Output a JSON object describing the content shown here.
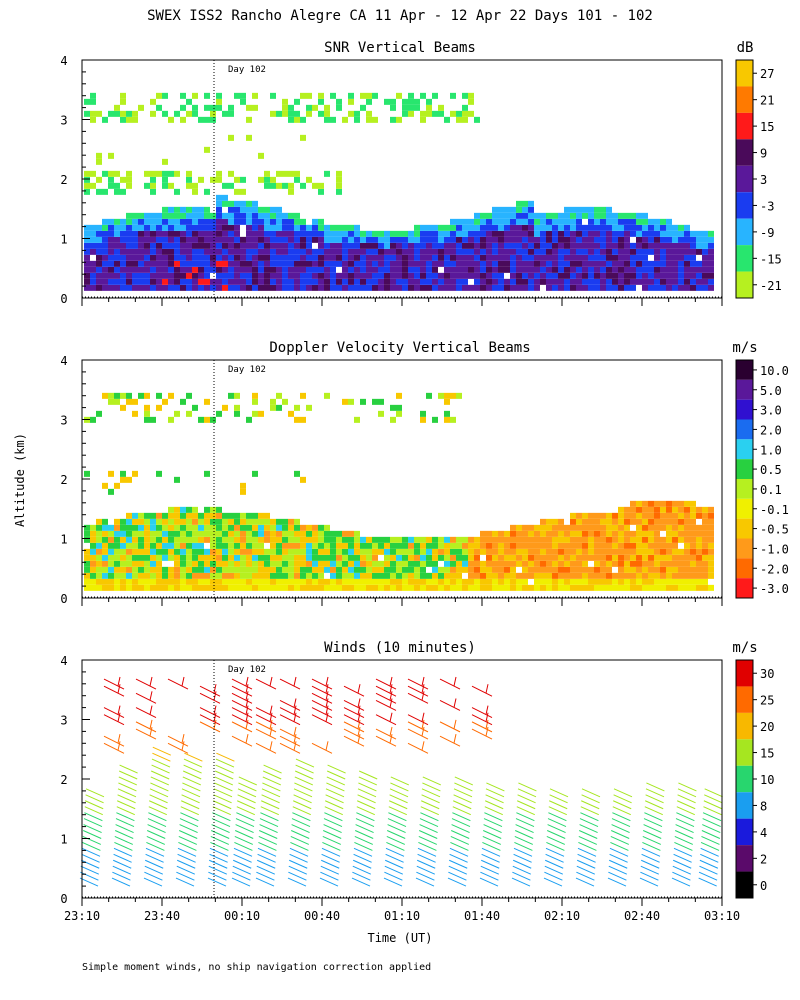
{
  "figure": {
    "title": "SWEX ISS2 Rancho Alegre CA  11 Apr - 12 Apr 22 Days 101 - 102",
    "footnote": "Simple moment winds, no ship navigation correction applied",
    "ylabel": "Altitude (km)",
    "xlabel": "Time (UT)",
    "day_marker_label": "Day 102"
  },
  "chart_data": [
    {
      "type": "heatmap",
      "title": "SNR Vertical Beams",
      "ylabel": "Altitude (km)",
      "ylim": [
        0,
        4
      ],
      "yticks": [
        "0",
        "1",
        "2",
        "3",
        "4"
      ],
      "xlim_minutes": [
        0,
        240
      ],
      "colorbar": {
        "unit": "dB",
        "labels": [
          "27",
          "21",
          "15",
          "9",
          "3",
          "-3",
          "-9",
          "-15",
          "-21"
        ],
        "colors": [
          "#f8c800",
          "#ff7a00",
          "#ff1a1a",
          "#4a0a5a",
          "#5a189a",
          "#1a3cf0",
          "#28b4ff",
          "#28e66e",
          "#b6f020"
        ]
      },
      "day_marker_minutes": 57,
      "cloud_layers": [
        {
          "altitude_range_km": [
            0.1,
            1.4
          ],
          "dominant_dB": 6,
          "time_range": [
            "23:10",
            "03:05"
          ]
        },
        {
          "altitude_range_km": [
            1.7,
            2.1
          ],
          "dominant_dB": -18,
          "time_range": [
            "23:10",
            "00:40"
          ]
        },
        {
          "altitude_range_km": [
            2.9,
            3.4
          ],
          "dominant_dB": -15,
          "time_range": [
            "23:10",
            "01:35"
          ]
        }
      ]
    },
    {
      "type": "heatmap",
      "title": "Doppler Velocity Vertical Beams",
      "ylabel": "Altitude (km)",
      "ylim": [
        0,
        4
      ],
      "yticks": [
        "0",
        "1",
        "2",
        "3",
        "4"
      ],
      "xlim_minutes": [
        0,
        240
      ],
      "colorbar": {
        "unit": "m/s",
        "labels": [
          "10.0",
          "5.0",
          "3.0",
          "2.0",
          "1.0",
          "0.5",
          "0.1",
          "-0.1",
          "-0.5",
          "-1.0",
          "-2.0",
          "-3.0"
        ],
        "colors": [
          "#2a0030",
          "#5a189a",
          "#3010d0",
          "#1a6cf0",
          "#2ad0f0",
          "#28d040",
          "#b6f020",
          "#f0f000",
          "#f8c800",
          "#ff9a1a",
          "#ff6a00",
          "#ff1a1a"
        ]
      },
      "day_marker_minutes": 57
    },
    {
      "type": "wind_barbs",
      "title": "Winds (10 minutes)",
      "xlabel": "Time (UT)",
      "ylabel": "Altitude (km)",
      "ylim": [
        0,
        4
      ],
      "yticks": [
        "0",
        "1",
        "2",
        "3",
        "4"
      ],
      "xticks": [
        "23:10",
        "23:40",
        "00:10",
        "00:40",
        "01:10",
        "01:40",
        "02:10",
        "02:40",
        "03:10"
      ],
      "colorbar": {
        "unit": "m/s",
        "labels": [
          "30",
          "25",
          "20",
          "15",
          "10",
          "8",
          "4",
          "2",
          "0"
        ],
        "colors": [
          "#e00000",
          "#ff6a00",
          "#f8b800",
          "#a6e620",
          "#28d66e",
          "#1a9ef0",
          "#1a1adc",
          "#5a0a6a",
          "#000000"
        ]
      },
      "day_marker_minutes": 57,
      "profile_minutes": [
        6,
        18,
        30,
        42,
        54,
        63,
        72,
        84,
        96,
        108,
        120,
        132,
        144,
        156,
        168,
        180,
        192,
        204,
        216,
        228,
        238
      ],
      "profile_top_km": [
        1.8,
        2.2,
        2.5,
        2.4,
        2.4,
        2.0,
        2.2,
        2.3,
        2.2,
        2.1,
        2.0,
        2.0,
        1.95,
        1.9,
        1.85,
        1.8,
        1.8,
        1.75,
        1.85,
        1.9,
        1.8
      ]
    }
  ]
}
